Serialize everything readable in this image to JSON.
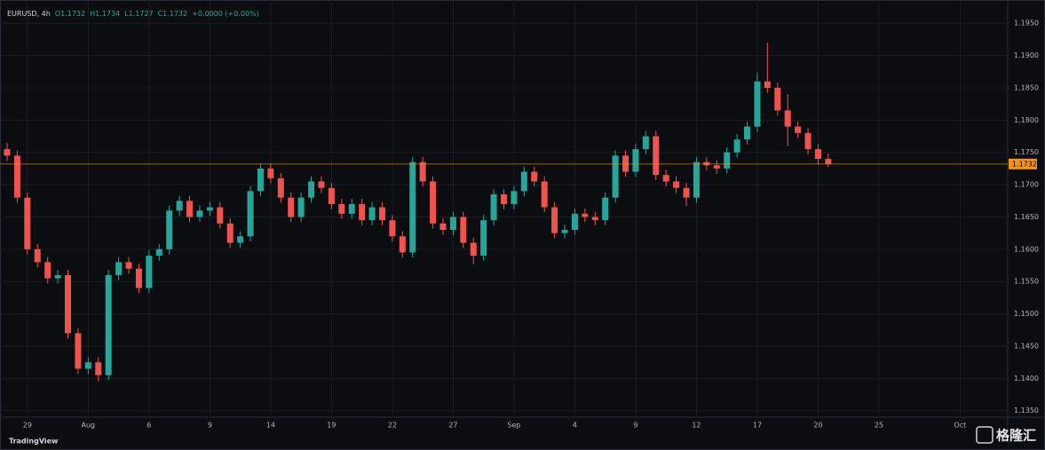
{
  "chart_data": {
    "type": "candlestick",
    "legend": [
      "EURUSD, 4h",
      "O1.1732",
      "H1.1734",
      "L1.1727",
      "C1.1732",
      "+0.0000 (+0.00%)"
    ],
    "x": [
      0,
      1,
      2,
      3,
      4,
      5,
      6,
      7,
      8,
      9,
      10,
      11,
      12,
      13,
      14,
      15,
      16,
      17,
      18,
      19,
      20,
      21,
      22,
      23,
      24,
      25,
      26,
      27,
      28,
      29,
      30,
      31,
      32,
      33,
      34,
      35,
      36,
      37,
      38,
      39,
      40,
      41,
      42,
      43,
      44,
      45,
      46,
      47,
      48,
      49,
      50,
      51,
      52,
      53,
      54,
      55,
      56,
      57,
      58,
      59,
      60,
      61,
      62,
      63,
      64,
      65,
      66,
      67,
      68,
      69,
      70,
      71,
      72,
      73,
      74,
      75,
      76,
      77,
      78,
      79,
      80,
      81
    ],
    "open": [
      1.1755,
      1.1745,
      1.168,
      1.16,
      1.158,
      1.1555,
      1.156,
      1.147,
      1.1415,
      1.1425,
      1.1405,
      1.156,
      1.158,
      1.157,
      1.154,
      1.159,
      1.16,
      1.166,
      1.1675,
      1.165,
      1.166,
      1.1665,
      1.164,
      1.161,
      1.162,
      1.169,
      1.1725,
      1.171,
      1.168,
      1.165,
      1.168,
      1.1705,
      1.1695,
      1.167,
      1.1655,
      1.167,
      1.1645,
      1.1665,
      1.1645,
      1.162,
      1.1595,
      1.1735,
      1.1705,
      1.164,
      1.163,
      1.165,
      1.161,
      1.159,
      1.1645,
      1.1685,
      1.167,
      1.169,
      1.172,
      1.1705,
      1.1665,
      1.1625,
      1.163,
      1.1655,
      1.165,
      1.1645,
      1.168,
      1.1745,
      1.172,
      1.1755,
      1.1775,
      1.1715,
      1.1705,
      1.1695,
      1.168,
      1.1735,
      1.173,
      1.1725,
      1.175,
      1.177,
      1.179,
      1.186,
      1.185,
      1.1815,
      1.179,
      1.178,
      1.1755,
      1.174
    ],
    "high": [
      1.1765,
      1.1753,
      1.1688,
      1.1608,
      1.1588,
      1.1568,
      1.1568,
      1.1478,
      1.1433,
      1.1433,
      1.1568,
      1.1588,
      1.1588,
      1.1578,
      1.1598,
      1.1608,
      1.1668,
      1.1683,
      1.1683,
      1.1668,
      1.1673,
      1.1673,
      1.1648,
      1.1628,
      1.1698,
      1.1733,
      1.1733,
      1.1718,
      1.1688,
      1.1688,
      1.1713,
      1.1713,
      1.1703,
      1.1678,
      1.1678,
      1.1678,
      1.1673,
      1.1673,
      1.1653,
      1.1628,
      1.1743,
      1.1743,
      1.1713,
      1.1648,
      1.1658,
      1.1658,
      1.1618,
      1.1653,
      1.1693,
      1.1693,
      1.1698,
      1.1728,
      1.1728,
      1.1713,
      1.1673,
      1.1638,
      1.1663,
      1.1663,
      1.1658,
      1.1688,
      1.1753,
      1.1753,
      1.1763,
      1.1783,
      1.1783,
      1.1723,
      1.1713,
      1.1703,
      1.1743,
      1.1743,
      1.1738,
      1.1758,
      1.1778,
      1.1798,
      1.1873,
      1.192,
      1.1858,
      1.184,
      1.1798,
      1.1788,
      1.1763,
      1.1748
    ],
    "low": [
      1.1737,
      1.1672,
      1.1592,
      1.1572,
      1.1547,
      1.1547,
      1.1462,
      1.1407,
      1.1407,
      1.1395,
      1.1397,
      1.1552,
      1.1562,
      1.1532,
      1.1532,
      1.1582,
      1.1592,
      1.1652,
      1.1642,
      1.1642,
      1.1652,
      1.1632,
      1.1602,
      1.1602,
      1.1612,
      1.1682,
      1.1702,
      1.1672,
      1.1642,
      1.1642,
      1.1672,
      1.1687,
      1.1662,
      1.1647,
      1.1647,
      1.1637,
      1.1637,
      1.1637,
      1.1612,
      1.1587,
      1.1587,
      1.1697,
      1.1632,
      1.1622,
      1.1622,
      1.1602,
      1.1577,
      1.1582,
      1.1637,
      1.1662,
      1.1662,
      1.1682,
      1.1697,
      1.1657,
      1.1617,
      1.1617,
      1.1622,
      1.1642,
      1.1637,
      1.1637,
      1.1672,
      1.1712,
      1.1712,
      1.1747,
      1.1707,
      1.1697,
      1.1687,
      1.1667,
      1.1672,
      1.1722,
      1.1717,
      1.1717,
      1.1742,
      1.1762,
      1.1782,
      1.1842,
      1.1807,
      1.176,
      1.1772,
      1.1747,
      1.1732,
      1.1727
    ],
    "close": [
      1.1745,
      1.168,
      1.16,
      1.158,
      1.1555,
      1.156,
      1.147,
      1.1415,
      1.1425,
      1.1405,
      1.156,
      1.158,
      1.157,
      1.154,
      1.159,
      1.16,
      1.166,
      1.1675,
      1.165,
      1.166,
      1.1665,
      1.164,
      1.161,
      1.162,
      1.169,
      1.1725,
      1.171,
      1.168,
      1.165,
      1.168,
      1.1705,
      1.1695,
      1.167,
      1.1655,
      1.167,
      1.1645,
      1.1665,
      1.1645,
      1.162,
      1.1595,
      1.1735,
      1.1705,
      1.164,
      1.163,
      1.165,
      1.161,
      1.159,
      1.1645,
      1.1685,
      1.167,
      1.169,
      1.172,
      1.1705,
      1.1665,
      1.1625,
      1.163,
      1.1655,
      1.165,
      1.1645,
      1.168,
      1.1745,
      1.172,
      1.1755,
      1.1775,
      1.1715,
      1.1705,
      1.1695,
      1.168,
      1.1735,
      1.173,
      1.1725,
      1.175,
      1.177,
      1.179,
      1.186,
      1.185,
      1.1815,
      1.179,
      1.178,
      1.1755,
      1.174,
      1.1732
    ],
    "up_color": "#26a69a",
    "down_color": "#ef5350",
    "last_price": 1.1732,
    "last_price_color": "#f7931a",
    "xlim": [
      -0.7,
      98.7
    ],
    "xticks": [
      {
        "value": 2,
        "label": "29"
      },
      {
        "value": 8,
        "label": "Aug"
      },
      {
        "value": 14,
        "label": "6"
      },
      {
        "value": 20,
        "label": "9"
      },
      {
        "value": 26,
        "label": "14"
      },
      {
        "value": 32,
        "label": "19"
      },
      {
        "value": 38,
        "label": "22"
      },
      {
        "value": 44,
        "label": "27"
      },
      {
        "value": 50,
        "label": "Sep"
      },
      {
        "value": 56,
        "label": "4"
      },
      {
        "value": 62,
        "label": "9"
      },
      {
        "value": 68,
        "label": "12"
      },
      {
        "value": 74,
        "label": "17"
      },
      {
        "value": 80,
        "label": "20"
      },
      {
        "value": 86,
        "label": "25"
      },
      {
        "value": 94,
        "label": "Oct"
      }
    ],
    "ylim": [
      1.134,
      1.1986
    ],
    "yticks": [
      {
        "value": 1.135,
        "label": "1.1350"
      },
      {
        "value": 1.14,
        "label": "1.1400"
      },
      {
        "value": 1.145,
        "label": "1.1450"
      },
      {
        "value": 1.15,
        "label": "1.1500"
      },
      {
        "value": 1.155,
        "label": "1.1550"
      },
      {
        "value": 1.16,
        "label": "1.1600"
      },
      {
        "value": 1.165,
        "label": "1.1650"
      },
      {
        "value": 1.17,
        "label": "1.1700"
      },
      {
        "value": 1.175,
        "label": "1.1750"
      },
      {
        "value": 1.18,
        "label": "1.1800"
      },
      {
        "value": 1.185,
        "label": "1.1850"
      },
      {
        "value": 1.19,
        "label": "1.1900"
      },
      {
        "value": 1.195,
        "label": "1.1950"
      }
    ],
    "grid": true,
    "watermark": "TradingView",
    "brand": "格隆汇"
  }
}
